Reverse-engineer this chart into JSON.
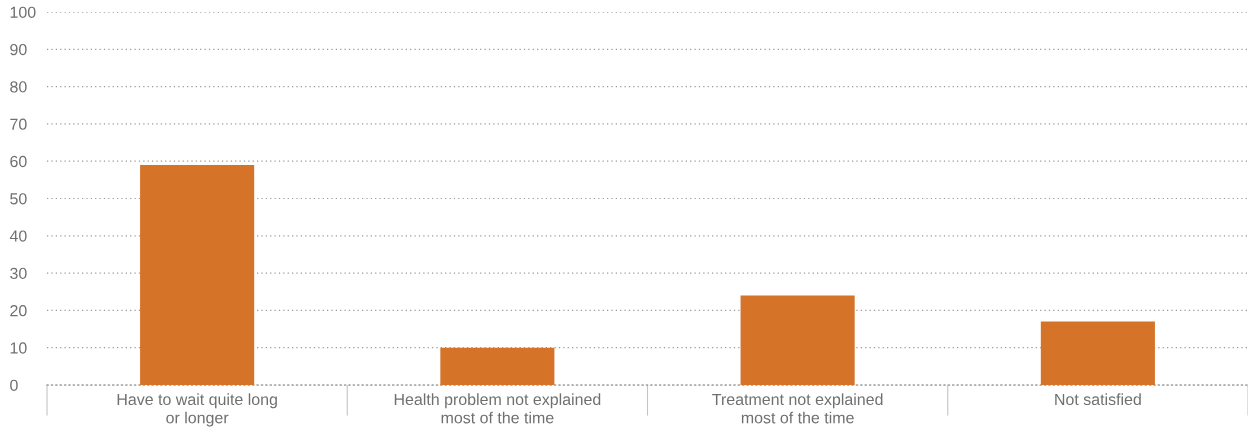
{
  "chart_data": {
    "type": "bar",
    "categories": [
      "Have to wait quite long\nor longer",
      "Health problem not explained\nmost of the time",
      "Treatment not explained\nmost of the time",
      "Not satisfied"
    ],
    "values": [
      59,
      10,
      24,
      17
    ],
    "color": "#d57428",
    "ylim": [
      0,
      100
    ],
    "yticks": [
      0,
      10,
      20,
      30,
      40,
      50,
      60,
      70,
      80,
      90,
      100
    ],
    "grid": "y"
  }
}
